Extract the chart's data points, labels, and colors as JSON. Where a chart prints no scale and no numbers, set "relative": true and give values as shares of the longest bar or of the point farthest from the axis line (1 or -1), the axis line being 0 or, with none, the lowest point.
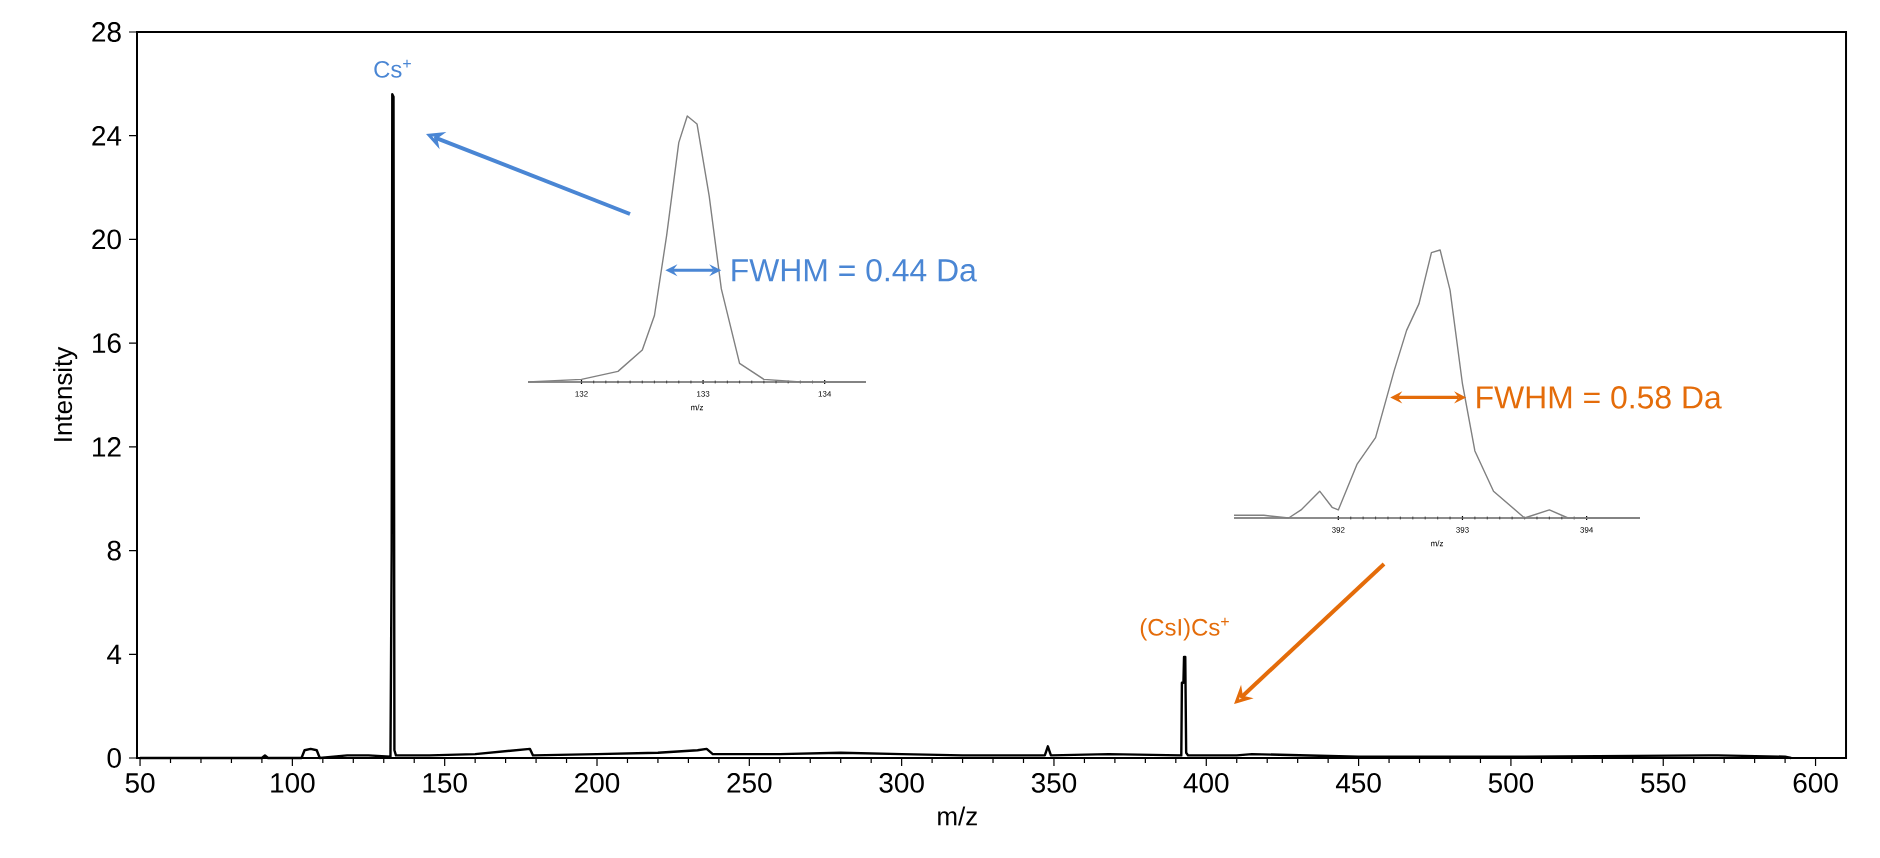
{
  "chart_data": [
    {
      "type": "line",
      "xlabel": "m/z",
      "ylabel": "Intensity",
      "color": "#000000",
      "x": [
        50,
        90,
        91,
        92,
        103,
        104,
        106,
        108,
        109,
        118,
        125,
        132.2,
        132.6,
        132.8,
        133.2,
        133.5,
        134,
        145,
        160,
        178,
        179,
        200,
        220,
        233,
        236,
        238,
        260,
        280,
        300,
        320,
        347,
        348,
        349,
        368,
        391.8,
        392,
        392.5,
        392.7,
        393.1,
        393.4,
        394,
        410,
        415,
        450,
        500,
        565,
        568,
        590,
        592
      ],
      "values": [
        0,
        0,
        0.1,
        0,
        0,
        0.3,
        0.35,
        0.3,
        0,
        0.1,
        0.1,
        0.05,
        8,
        25.6,
        25.5,
        0.3,
        0.1,
        0.1,
        0.15,
        0.35,
        0.1,
        0.15,
        0.2,
        0.3,
        0.35,
        0.15,
        0.15,
        0.2,
        0.15,
        0.1,
        0.1,
        0.45,
        0.1,
        0.15,
        0.1,
        2.9,
        2.9,
        3.9,
        3.9,
        0.2,
        0.1,
        0.1,
        0.15,
        0.05,
        0.05,
        0.1,
        0.1,
        0.05,
        0
      ],
      "xlim": [
        49,
        610
      ],
      "ylim": [
        0,
        28
      ],
      "xticks": [
        50,
        100,
        150,
        200,
        250,
        300,
        350,
        400,
        450,
        500,
        550,
        600
      ],
      "yticks": [
        0,
        4,
        8,
        12,
        16,
        20,
        24,
        28
      ],
      "annotations": [
        {
          "text": "Cs$^{+}$",
          "x": 133,
          "y": 25.6
        },
        {
          "text": "(CsI)Cs$^{+}$",
          "x": 393,
          "y": 3.9
        }
      ]
    },
    {
      "type": "line",
      "xlabel": "m/z",
      "color": "#808080",
      "relative": true,
      "tick_labels": "x",
      "x": [
        131.56,
        132.0,
        132.3,
        132.5,
        132.6,
        132.7,
        132.8,
        132.87,
        132.95,
        133.05,
        133.15,
        133.3,
        133.5,
        133.8,
        134.34
      ],
      "values": [
        0,
        0.01,
        0.04,
        0.12,
        0.25,
        0.55,
        0.9,
        1,
        0.97,
        0.7,
        0.35,
        0.07,
        0.01,
        0,
        0
      ],
      "xlim": [
        131.56,
        134.34
      ],
      "xticks": [
        132,
        133,
        134
      ],
      "annotations": [
        {
          "text": "FWHM = 0.44 Da",
          "x": 133.15,
          "y": 0.42
        }
      ]
    },
    {
      "type": "line",
      "xlabel": "m/z",
      "color": "#808080",
      "relative": true,
      "tick_labels": "x",
      "x": [
        391.16,
        391.4,
        391.6,
        391.7,
        391.85,
        391.95,
        392.0,
        392.15,
        392.3,
        392.45,
        392.55,
        392.65,
        392.75,
        392.82,
        392.9,
        393.0,
        393.1,
        393.25,
        393.5,
        393.7,
        393.85,
        394.43
      ],
      "values": [
        0.01,
        0.01,
        0,
        0.03,
        0.1,
        0.04,
        0.03,
        0.2,
        0.3,
        0.55,
        0.7,
        0.8,
        0.99,
        1,
        0.85,
        0.5,
        0.25,
        0.1,
        0,
        0.03,
        0,
        0
      ],
      "xlim": [
        391.16,
        394.43
      ],
      "xticks": [
        392,
        393,
        394
      ],
      "annotations": [
        {
          "text": "FWHM = 0.58 Da",
          "x": 393.03,
          "y": 0.45
        }
      ]
    }
  ]
}
